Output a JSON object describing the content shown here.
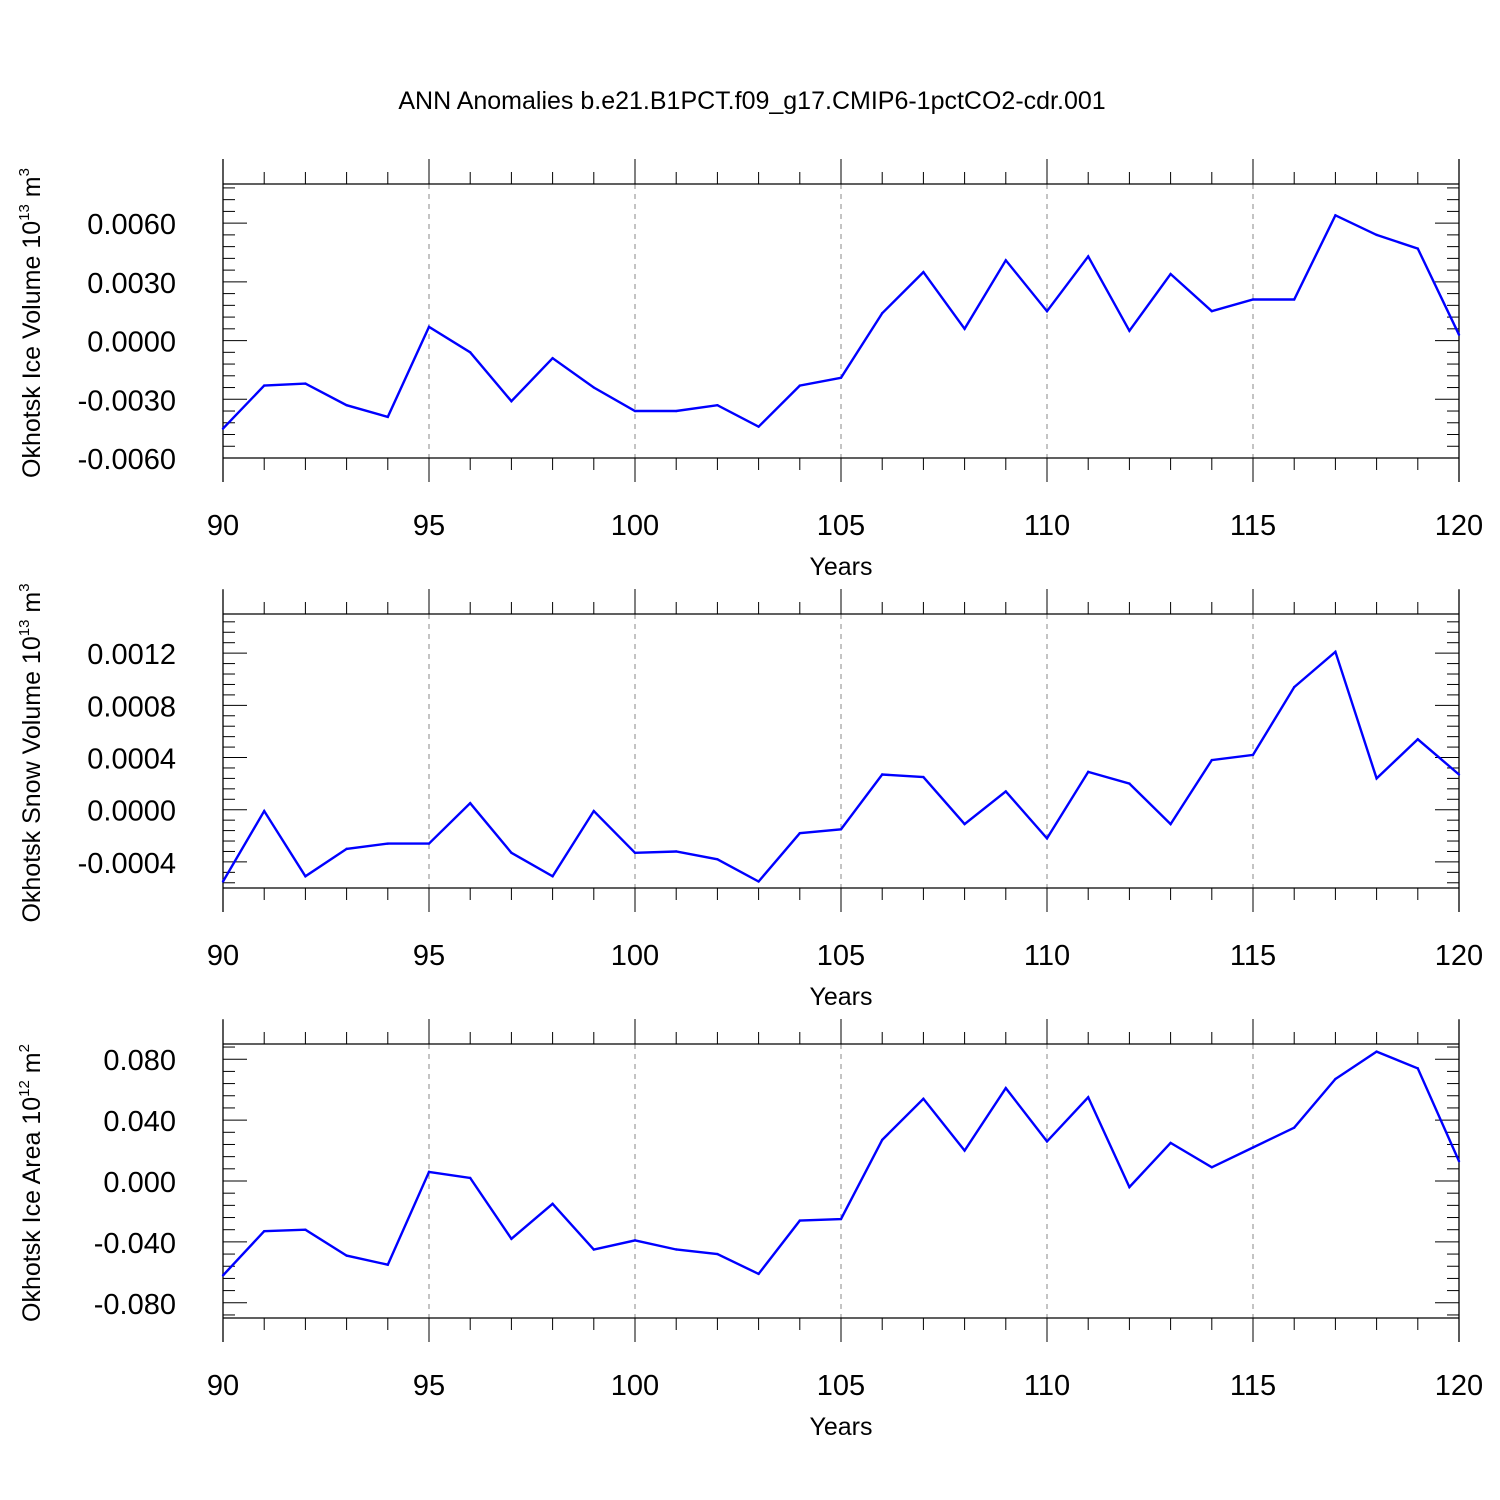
{
  "title": "ANN Anomalies b.e21.B1PCT.f09_g17.CMIP6-1pctCO2-cdr.001",
  "colors": {
    "series": "#0000ff",
    "axes": "#000000",
    "grid": "#888888"
  },
  "chart_data": [
    {
      "type": "line",
      "ylabel_main": "Okhotsk Ice Volume 10",
      "ylabel_exp": "13",
      "ylabel_unit": " m",
      "ylabel_unit_exp": "3",
      "xlabel": "Years",
      "xlim": [
        90,
        120
      ],
      "ylim": [
        -0.006,
        0.008
      ],
      "xticks": [
        "90",
        "95",
        "100",
        "105",
        "110",
        "115",
        "120"
      ],
      "yticks": [
        "-0.0060",
        "-0.0030",
        "0.0000",
        "0.0030",
        "0.0060"
      ],
      "ytick_values": [
        -0.006,
        -0.003,
        0.0,
        0.003,
        0.006
      ],
      "grid": "vertical dashed at major x ticks",
      "series": [
        {
          "x": [
            90,
            91,
            92,
            93,
            94,
            95,
            96,
            97,
            98,
            99,
            100,
            101,
            102,
            103,
            104,
            105,
            106,
            107,
            108,
            109,
            110,
            111,
            112,
            113,
            114,
            115,
            116,
            117,
            118,
            119,
            120
          ],
          "values": [
            -0.0045,
            -0.0023,
            -0.0022,
            -0.0033,
            -0.0039,
            0.0007,
            -0.0006,
            -0.0031,
            -0.0009,
            -0.0024,
            -0.0036,
            -0.0036,
            -0.0033,
            -0.0044,
            -0.0023,
            -0.0019,
            0.0014,
            0.0035,
            0.0006,
            0.0041,
            0.0015,
            0.0043,
            0.0005,
            0.0034,
            0.0015,
            0.0021,
            0.0021,
            0.0064,
            0.0054,
            0.0047,
            0.0003
          ]
        }
      ]
    },
    {
      "type": "line",
      "ylabel_main": "Okhotsk Snow Volume 10",
      "ylabel_exp": "13",
      "ylabel_unit": " m",
      "ylabel_unit_exp": "3",
      "xlabel": "Years",
      "xlim": [
        90,
        120
      ],
      "ylim": [
        -0.0006,
        0.0015
      ],
      "xticks": [
        "90",
        "95",
        "100",
        "105",
        "110",
        "115",
        "120"
      ],
      "yticks": [
        "-0.0004",
        "0.0000",
        "0.0004",
        "0.0008",
        "0.0012"
      ],
      "ytick_values": [
        -0.0004,
        0.0,
        0.0004,
        0.0008,
        0.0012
      ],
      "grid": "vertical dashed at major x ticks",
      "series": [
        {
          "x": [
            90,
            91,
            92,
            93,
            94,
            95,
            96,
            97,
            98,
            99,
            100,
            101,
            102,
            103,
            104,
            105,
            106,
            107,
            108,
            109,
            110,
            111,
            112,
            113,
            114,
            115,
            116,
            117,
            118,
            119,
            120
          ],
          "values": [
            -0.00055,
            -1e-05,
            -0.00051,
            -0.0003,
            -0.00026,
            -0.00026,
            5e-05,
            -0.00033,
            -0.00051,
            -1e-05,
            -0.00033,
            -0.00032,
            -0.00038,
            -0.00055,
            -0.00018,
            -0.00015,
            0.00027,
            0.00025,
            -0.00011,
            0.00014,
            -0.00022,
            0.00029,
            0.0002,
            -0.00011,
            0.00038,
            0.00042,
            0.00094,
            0.00121,
            0.00024,
            0.00054,
            0.00027
          ]
        }
      ]
    },
    {
      "type": "line",
      "ylabel_main": "Okhotsk Ice Area 10",
      "ylabel_exp": "12",
      "ylabel_unit": " m",
      "ylabel_unit_exp": "2",
      "xlabel": "Years",
      "xlim": [
        90,
        120
      ],
      "ylim": [
        -0.09,
        0.09
      ],
      "xticks": [
        "90",
        "95",
        "100",
        "105",
        "110",
        "115",
        "120"
      ],
      "yticks": [
        "-0.080",
        "-0.040",
        "0.000",
        "0.040",
        "0.080"
      ],
      "ytick_values": [
        -0.08,
        -0.04,
        0.0,
        0.04,
        0.08
      ],
      "grid": "vertical dashed at major x ticks",
      "series": [
        {
          "x": [
            90,
            91,
            92,
            93,
            94,
            95,
            96,
            97,
            98,
            99,
            100,
            101,
            102,
            103,
            104,
            105,
            106,
            107,
            108,
            109,
            110,
            111,
            112,
            113,
            114,
            115,
            116,
            117,
            118,
            119,
            120
          ],
          "values": [
            -0.062,
            -0.033,
            -0.032,
            -0.049,
            -0.055,
            0.006,
            0.002,
            -0.038,
            -0.015,
            -0.045,
            -0.039,
            -0.045,
            -0.048,
            -0.061,
            -0.026,
            -0.025,
            0.027,
            0.054,
            0.02,
            0.061,
            0.026,
            0.055,
            -0.004,
            0.025,
            0.009,
            0.022,
            0.035,
            0.067,
            0.085,
            0.074,
            0.013
          ]
        }
      ]
    }
  ]
}
